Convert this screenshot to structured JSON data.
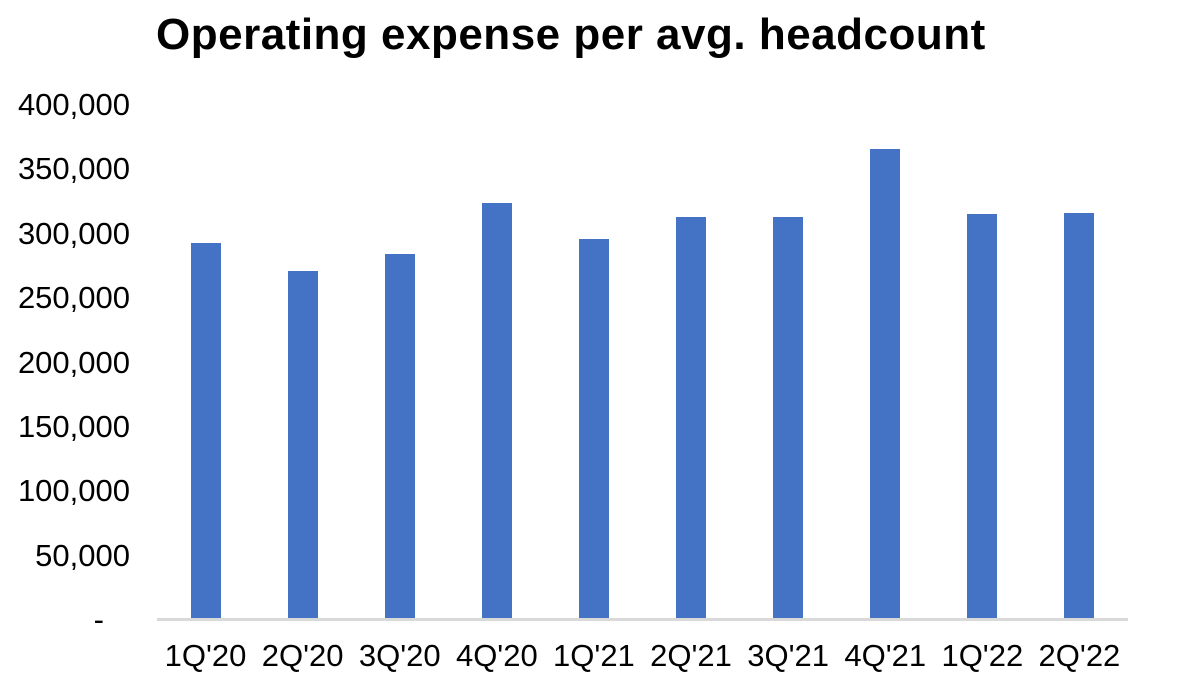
{
  "chart_data": {
    "type": "bar",
    "title": "Operating expense per avg. headcount",
    "categories": [
      "1Q'20",
      "2Q'20",
      "3Q'20",
      "4Q'20",
      "1Q'21",
      "2Q'21",
      "3Q'21",
      "4Q'21",
      "1Q'22",
      "2Q'22"
    ],
    "values": [
      293000,
      271000,
      284000,
      324000,
      296000,
      313000,
      313000,
      366000,
      315000,
      316000
    ],
    "xlabel": "",
    "ylabel": "",
    "ylim": [
      0,
      400000
    ],
    "y_tick_interval": 50000,
    "y_tick_labels": [
      "400,000",
      "350,000",
      "300,000",
      "250,000",
      "200,000",
      "150,000",
      "100,000",
      "50,000",
      "-"
    ],
    "grid": false,
    "legend": false,
    "bar_color": "#4472C4",
    "axis_line_color": "#D9D9D9",
    "text_color": "#000000",
    "background_color": "#FFFFFF"
  }
}
